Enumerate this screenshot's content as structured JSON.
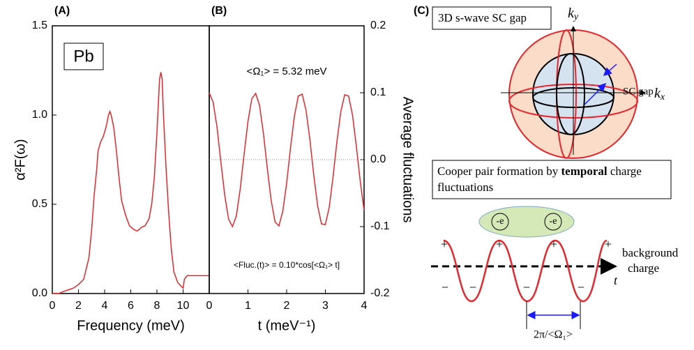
{
  "chart_data": [
    {
      "type": "line",
      "panel_label": "(A)",
      "inset_label": "Pb",
      "x": [
        0,
        0.5,
        0.8,
        1.2,
        1.6,
        2.0,
        2.4,
        2.8,
        3.0,
        3.2,
        3.4,
        3.5,
        3.7,
        3.9,
        4.1,
        4.3,
        4.4,
        4.5,
        4.7,
        4.9,
        5.1,
        5.3,
        5.6,
        5.9,
        6.2,
        6.5,
        6.8,
        7.1,
        7.4,
        7.6,
        7.8,
        8.0,
        8.1,
        8.2,
        8.3,
        8.4,
        8.5,
        8.7,
        8.9,
        9.1,
        9.3,
        9.6,
        10.0,
        10.1,
        10.3,
        11,
        12
      ],
      "values": [
        0,
        0,
        0.01,
        0.02,
        0.03,
        0.05,
        0.08,
        0.2,
        0.35,
        0.55,
        0.7,
        0.8,
        0.85,
        0.88,
        0.93,
        1.0,
        1.02,
        1.0,
        0.93,
        0.8,
        0.65,
        0.52,
        0.44,
        0.38,
        0.36,
        0.35,
        0.37,
        0.38,
        0.42,
        0.5,
        0.65,
        0.9,
        1.05,
        1.2,
        1.24,
        1.2,
        1.0,
        0.7,
        0.45,
        0.25,
        0.12,
        0.06,
        0.03,
        0.08,
        0.1,
        0.1,
        0.1
      ],
      "color": "#e8252a",
      "xlim": [
        0,
        12
      ],
      "xticks": [
        0,
        2,
        4,
        6,
        8,
        10
      ],
      "ylim": [
        0,
        1.5
      ],
      "yticks": [
        {
          "value": 0,
          "label": "0.0"
        },
        0.5,
        {
          "value": 1,
          "label": "1.0"
        },
        1.5
      ],
      "xlabel": "Frequency (meV)",
      "ylabel": "α²F(ω)"
    },
    {
      "type": "line",
      "panel_label": "(B)",
      "x": [
        0,
        0.1,
        0.2,
        0.3,
        0.4,
        0.5,
        0.6,
        0.7,
        0.8,
        0.9,
        1.0,
        1.1,
        1.2,
        1.3,
        1.4,
        1.5,
        1.6,
        1.7,
        1.8,
        1.9,
        2.0,
        2.1,
        2.2,
        2.3,
        2.4,
        2.5,
        2.6,
        2.7,
        2.8,
        2.9,
        3.0,
        3.1,
        3.2,
        3.3,
        3.4,
        3.5,
        3.6,
        3.7,
        3.8,
        3.9,
        4.0
      ],
      "series": [
        {
          "color": "#e8252a",
          "axis": "y2",
          "values": [
            0.1,
            0.086,
            0.049,
            -0.003,
            -0.053,
            -0.089,
            -0.1,
            -0.084,
            -0.044,
            0.008,
            0.057,
            0.091,
            0.099,
            0.081,
            0.039,
            -0.013,
            -0.061,
            -0.093,
            -0.099,
            -0.077,
            -0.035,
            0.018,
            0.065,
            0.095,
            0.098,
            0.074,
            0.03,
            -0.023,
            -0.069,
            -0.096,
            -0.097,
            -0.071,
            -0.025,
            0.028,
            0.072,
            0.097,
            0.095,
            0.067,
            0.02,
            -0.032,
            -0.076
          ]
        }
      ],
      "xlim": [
        0,
        4
      ],
      "xticks": [
        0,
        1,
        2,
        3,
        4
      ],
      "y2lim": [
        -0.2,
        0.2
      ],
      "y2ticks": [
        -0.2,
        -0.1,
        {
          "value": 0,
          "label": "0.0"
        },
        0.1,
        0.2
      ],
      "zero_line": true,
      "xlabel": "t (meV⁻¹)",
      "y2label": "Average fluctuations",
      "annotations": [
        "<Ω₁> = 5.32 meV",
        "<Fluc.(t)> = 0.10*cos[<Ω₁> t]"
      ]
    }
  ],
  "diagram": {
    "panel_label": "(C)",
    "gap_title": "3D s-wave SC gap",
    "ky": {
      "main": "k",
      "sub": "y"
    },
    "kx": {
      "main": "k",
      "sub": "x"
    },
    "gap_label": "SC gap",
    "box": {
      "before": "Cooper pair formation by ",
      "bold": "temporal",
      "after": " charge",
      "line2": "fluctuations"
    },
    "charges": [
      "-e",
      "-e"
    ],
    "plus": [
      "+",
      "+",
      "+",
      "+"
    ],
    "minus": [
      "−",
      "−",
      "−",
      "−"
    ],
    "background": [
      "background",
      "charge"
    ],
    "t": "t",
    "period": "2π/<Ω₁>"
  }
}
